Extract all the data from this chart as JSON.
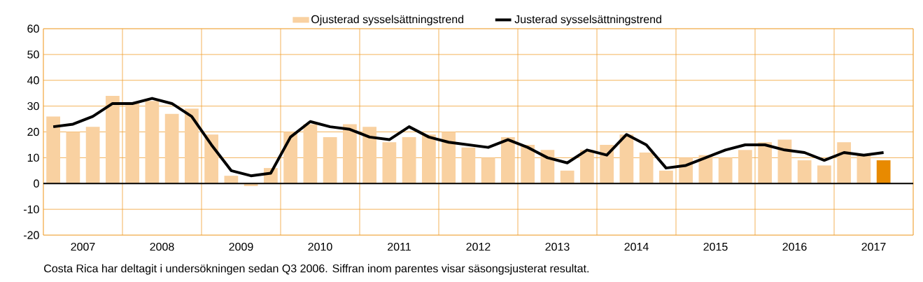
{
  "chart_data": {
    "type": "bar",
    "series": [
      {
        "name": "Ojusterad sysselsättningstrend",
        "color": "#f9d1a1",
        "colors": [
          "#f9d1a1",
          "#f9d1a1",
          "#f9d1a1",
          "#f9d1a1",
          "#f9d1a1",
          "#f9d1a1",
          "#f9d1a1",
          "#f9d1a1",
          "#f9d1a1",
          "#f9d1a1",
          "#f9d1a1",
          "#f9d1a1",
          "#f9d1a1",
          "#f9d1a1",
          "#f9d1a1",
          "#f9d1a1",
          "#f9d1a1",
          "#f9d1a1",
          "#f9d1a1",
          "#f9d1a1",
          "#f9d1a1",
          "#f9d1a1",
          "#f9d1a1",
          "#f9d1a1",
          "#f9d1a1",
          "#f9d1a1",
          "#f9d1a1",
          "#f9d1a1",
          "#f9d1a1",
          "#f9d1a1",
          "#f9d1a1",
          "#f9d1a1",
          "#f9d1a1",
          "#f9d1a1",
          "#f9d1a1",
          "#f9d1a1",
          "#f9d1a1",
          "#f9d1a1",
          "#f9d1a1",
          "#f9d1a1",
          "#f9d1a1",
          "#f9d1a1",
          "#e88a00"
        ],
        "x": [
          2007.125,
          2007.375,
          2007.625,
          2007.875,
          2008.125,
          2008.375,
          2008.625,
          2008.875,
          2009.125,
          2009.375,
          2009.625,
          2009.875,
          2010.125,
          2010.375,
          2010.625,
          2010.875,
          2011.125,
          2011.375,
          2011.625,
          2011.875,
          2012.125,
          2012.375,
          2012.625,
          2012.875,
          2013.125,
          2013.375,
          2013.625,
          2013.875,
          2014.125,
          2014.375,
          2014.625,
          2014.875,
          2015.125,
          2015.375,
          2015.625,
          2015.875,
          2016.125,
          2016.375,
          2016.625,
          2016.875,
          2017.125,
          2017.375,
          2017.625
        ],
        "values": [
          26,
          20,
          22,
          34,
          31,
          32,
          27,
          29,
          19,
          3,
          -1,
          6,
          20,
          23,
          18,
          23,
          22,
          16,
          18,
          19,
          20,
          14,
          10,
          18,
          15,
          13,
          5,
          13,
          15,
          19,
          12,
          5,
          10,
          11,
          10,
          13,
          16,
          17,
          9,
          7,
          16,
          11,
          9
        ]
      },
      {
        "name": "Justerad sysselsättningstrend",
        "type": "line",
        "color": "#000000",
        "x": [
          2007.125,
          2007.375,
          2007.625,
          2007.875,
          2008.125,
          2008.375,
          2008.625,
          2008.875,
          2009.125,
          2009.375,
          2009.625,
          2009.875,
          2010.125,
          2010.375,
          2010.625,
          2010.875,
          2011.125,
          2011.375,
          2011.625,
          2011.875,
          2012.125,
          2012.375,
          2012.625,
          2012.875,
          2013.125,
          2013.375,
          2013.625,
          2013.875,
          2014.125,
          2014.375,
          2014.625,
          2014.875,
          2015.125,
          2015.375,
          2015.625,
          2015.875,
          2016.125,
          2016.375,
          2016.625,
          2016.875,
          2017.125,
          2017.375,
          2017.625
        ],
        "values": [
          22,
          23,
          26,
          31,
          31,
          33,
          31,
          26,
          15,
          5,
          3,
          4,
          18,
          24,
          22,
          21,
          18,
          17,
          22,
          18,
          16,
          15,
          14,
          17,
          14,
          10,
          8,
          13,
          11,
          19,
          15,
          6,
          7,
          10,
          13,
          15,
          15,
          13,
          12,
          9,
          12,
          11,
          12
        ]
      }
    ],
    "xlim": [
      2007,
      2018
    ],
    "xticks": [
      {
        "value": 2007,
        "label": null
      },
      {
        "value": 2007.5,
        "label": "2007"
      },
      {
        "value": 2008,
        "label": null
      },
      {
        "value": 2008.5,
        "label": "2008"
      },
      {
        "value": 2009,
        "label": null
      },
      {
        "value": 2009.5,
        "label": "2009"
      },
      {
        "value": 2010,
        "label": null
      },
      {
        "value": 2010.5,
        "label": "2010"
      },
      {
        "value": 2011,
        "label": null
      },
      {
        "value": 2011.5,
        "label": "2011"
      },
      {
        "value": 2012,
        "label": null
      },
      {
        "value": 2012.5,
        "label": "2012"
      },
      {
        "value": 2013,
        "label": null
      },
      {
        "value": 2013.5,
        "label": "2013"
      },
      {
        "value": 2014,
        "label": null
      },
      {
        "value": 2014.5,
        "label": "2014"
      },
      {
        "value": 2015,
        "label": null
      },
      {
        "value": 2015.5,
        "label": "2015"
      },
      {
        "value": 2016,
        "label": null
      },
      {
        "value": 2016.5,
        "label": "2016"
      },
      {
        "value": 2017,
        "label": null
      },
      {
        "value": 2017.5,
        "label": "2017"
      },
      {
        "value": 2018,
        "label": null
      }
    ],
    "ylim": [
      -20,
      60
    ],
    "yticks": [
      -20,
      -10,
      0,
      10,
      20,
      30,
      40,
      50,
      60
    ],
    "ref_lines": [
      {
        "axis": "y",
        "value": 0,
        "color": "#000000"
      }
    ],
    "grid": true,
    "legend": "top",
    "annotations": [
      "Costa Rica har deltagit i undersökningen sedan Q3 2006. Siffran inom parentes visar säsongsjusterat resultat."
    ]
  }
}
